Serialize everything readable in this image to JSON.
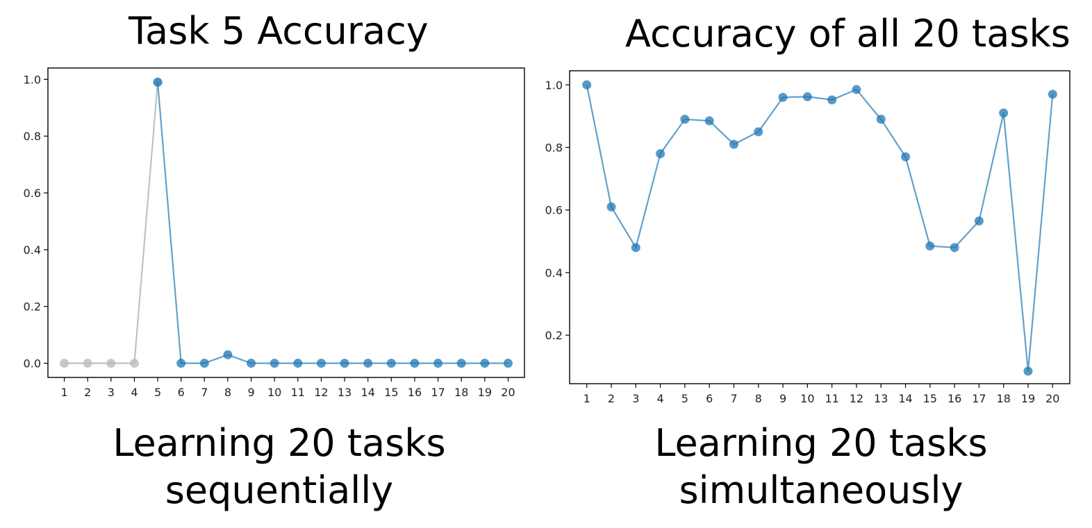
{
  "left": {
    "title": "Task 5 Accuracy",
    "caption_line1": "Learning 20 tasks",
    "caption_line2": "sequentially"
  },
  "right": {
    "title": "Accuracy of all 20 tasks",
    "caption_line1": "Learning 20 tasks",
    "caption_line2": "simultaneously"
  },
  "colors": {
    "series": "#1f77b4",
    "grey": "#bbbbbb",
    "axis": "#000000"
  },
  "chart_data": [
    {
      "type": "line",
      "title": "Task 5 Accuracy",
      "xlabel": "",
      "ylabel": "",
      "categories": [
        "1",
        "2",
        "3",
        "4",
        "5",
        "6",
        "7",
        "8",
        "9",
        "10",
        "11",
        "12",
        "13",
        "14",
        "15",
        "16",
        "17",
        "18",
        "19",
        "20"
      ],
      "xlim": [
        0.3,
        20.7
      ],
      "ylim": [
        -0.05,
        1.04
      ],
      "yticks": [
        0.0,
        0.2,
        0.4,
        0.6,
        0.8,
        1.0
      ],
      "ytick_labels": [
        "0.0",
        "0.2",
        "0.4",
        "0.6",
        "0.8",
        "1.0"
      ],
      "grid": false,
      "series": [
        {
          "color": "grey",
          "x": [
            1,
            2,
            3,
            4,
            5
          ],
          "values": [
            0.0,
            0.0,
            0.0,
            0.0,
            0.99
          ]
        },
        {
          "color": "blue",
          "x": [
            5,
            6,
            7,
            8,
            9,
            10,
            11,
            12,
            13,
            14,
            15,
            16,
            17,
            18,
            19,
            20
          ],
          "values": [
            0.99,
            0.0,
            0.0,
            0.03,
            0.0,
            0.0,
            0.0,
            0.0,
            0.0,
            0.0,
            0.0,
            0.0,
            0.0,
            0.0,
            0.0,
            0.0
          ]
        }
      ]
    },
    {
      "type": "line",
      "title": "Accuracy of all 20 tasks",
      "xlabel": "",
      "ylabel": "",
      "categories": [
        "1",
        "2",
        "3",
        "4",
        "5",
        "6",
        "7",
        "8",
        "9",
        "10",
        "11",
        "12",
        "13",
        "14",
        "15",
        "16",
        "17",
        "18",
        "19",
        "20"
      ],
      "xlim": [
        0.3,
        20.7
      ],
      "ylim": [
        0.045,
        1.045
      ],
      "yticks": [
        0.2,
        0.4,
        0.6,
        0.8,
        1.0
      ],
      "ytick_labels": [
        "0.2",
        "0.4",
        "0.6",
        "0.8",
        "1.0"
      ],
      "grid": false,
      "series": [
        {
          "color": "blue",
          "x": [
            1,
            2,
            3,
            4,
            5,
            6,
            7,
            8,
            9,
            10,
            11,
            12,
            13,
            14,
            15,
            16,
            17,
            18,
            19,
            20
          ],
          "values": [
            1.0,
            0.61,
            0.48,
            0.78,
            0.89,
            0.885,
            0.81,
            0.85,
            0.96,
            0.962,
            0.952,
            0.985,
            0.89,
            0.77,
            0.485,
            0.48,
            0.565,
            0.91,
            0.085,
            0.97
          ]
        }
      ]
    }
  ]
}
